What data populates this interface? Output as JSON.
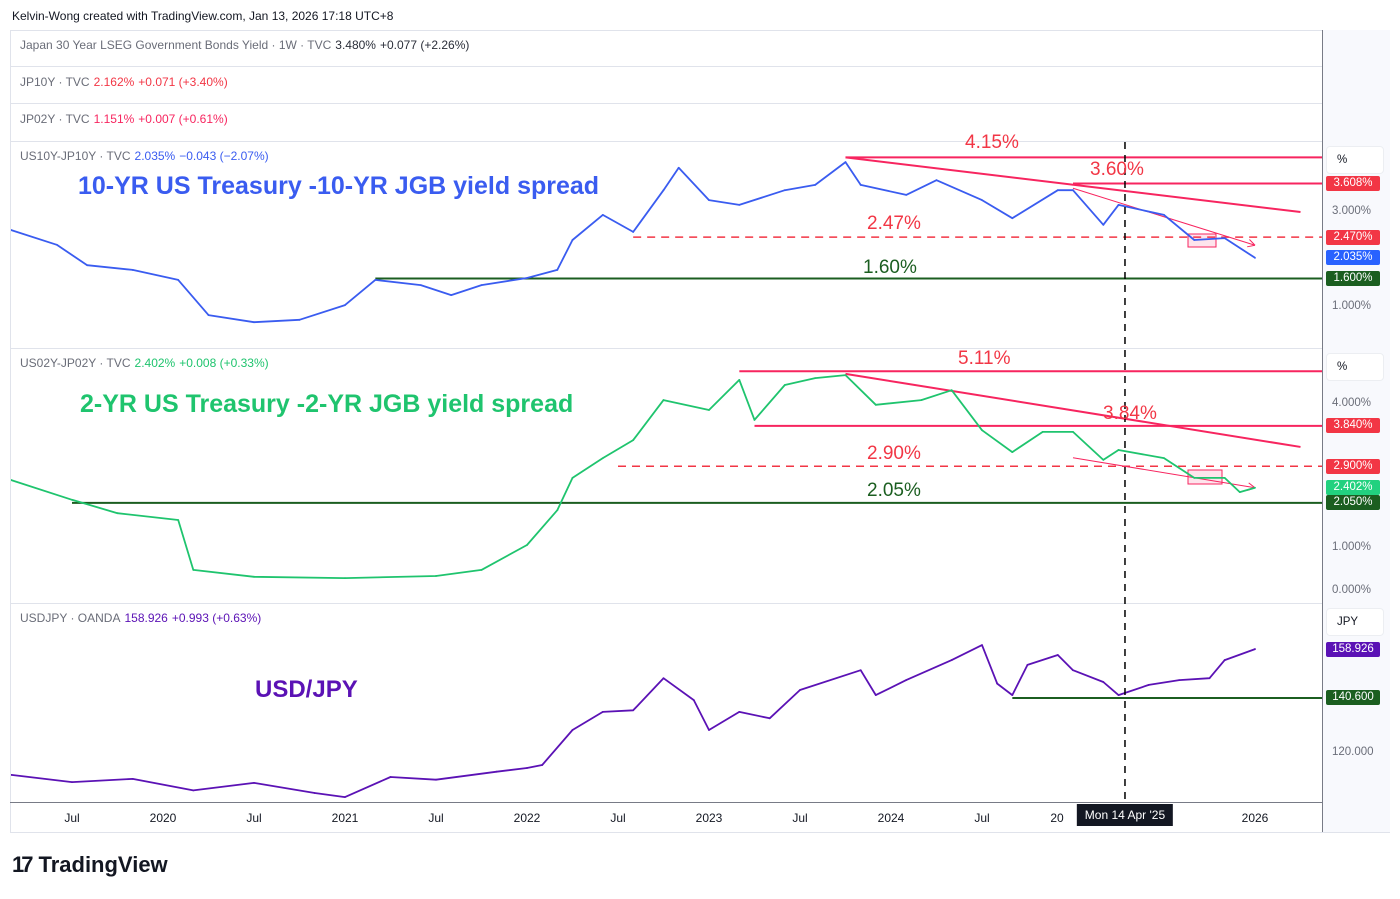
{
  "header": "Kelvin-Wong created with TradingView.com, Jan 13, 2026 17:18 UTC+8",
  "legends": [
    {
      "symbol": "Japan 30 Year LSEG Government Bonds Yield · 1W · TVC",
      "value": "3.480%",
      "change": "+0.077 (+2.26%)",
      "color": "#2a2e39"
    },
    {
      "symbol": "JP10Y · TVC",
      "value": "2.162%",
      "change": "+0.071 (+3.40%)",
      "color": "#f23645"
    },
    {
      "symbol": "JP02Y · TVC",
      "value": "1.151%",
      "change": "+0.007 (+0.61%)",
      "color": "#f7255f"
    },
    {
      "symbol": "US10Y-JP10Y · TVC",
      "value": "2.035%",
      "change": "−0.043 (−2.07%)",
      "color": "#3a5cf0"
    },
    {
      "symbol": "US02Y-JP02Y · TVC",
      "value": "2.402%",
      "change": "+0.008 (+0.33%)",
      "color": "#1fc46e"
    },
    {
      "symbol": "USDJPY · OANDA",
      "value": "158.926",
      "change": "+0.993 (+0.63%)",
      "color": "#5b12b5"
    }
  ],
  "logo": "TradingView",
  "chart_data": [
    {
      "type": "line",
      "title": "10-YR US Treasury -10-YR JGB yield spread",
      "unit": "%",
      "color": "#3a5cf0",
      "x": [
        "2019-03",
        "2019-06",
        "2019-08",
        "2019-11",
        "2020-02",
        "2020-04",
        "2020-07",
        "2020-10",
        "2021-01",
        "2021-03",
        "2021-06",
        "2021-08",
        "2021-10",
        "2022-01",
        "2022-03",
        "2022-04",
        "2022-06",
        "2022-08",
        "2022-10",
        "2022-11",
        "2023-01",
        "2023-03",
        "2023-06",
        "2023-08",
        "2023-10",
        "2023-11",
        "2024-02",
        "2024-04",
        "2024-07",
        "2024-09",
        "2024-12",
        "2025-01",
        "2025-03",
        "2025-04",
        "2025-07",
        "2025-09",
        "2025-11",
        "2026-01"
      ],
      "values": [
        2.62,
        2.31,
        1.88,
        1.78,
        1.57,
        0.83,
        0.68,
        0.73,
        1.04,
        1.57,
        1.46,
        1.25,
        1.46,
        1.61,
        1.78,
        2.41,
        2.94,
        2.58,
        3.46,
        3.93,
        3.25,
        3.15,
        3.46,
        3.57,
        4.05,
        3.57,
        3.36,
        3.67,
        3.25,
        2.87,
        3.46,
        3.46,
        2.73,
        3.15,
        2.94,
        2.41,
        2.45,
        2.035
      ],
      "ticks": [
        "3.000%",
        "1.000%"
      ],
      "price_labels": [
        {
          "text": "3.608%",
          "color": "#f23645",
          "v": 3.608
        },
        {
          "text": "2.470%",
          "color": "#f23645",
          "v": 2.47
        },
        {
          "text": "2.035%",
          "color": "#2962ff",
          "v": 2.035
        },
        {
          "text": "1.600%",
          "color": "#1b5e20",
          "v": 1.6
        }
      ],
      "levels": [
        {
          "label": "4.15%",
          "v": 4.15,
          "from": "2023-10",
          "style": "solid",
          "color": "#f7255f"
        },
        {
          "label": "3.60%",
          "v": 3.6,
          "from": "2025-01",
          "style": "solid",
          "color": "#f7255f"
        },
        {
          "label": "2.47%",
          "v": 2.47,
          "from": "2022-08",
          "style": "dashed",
          "color": "#f23645"
        },
        {
          "label": "1.60%",
          "v": 1.6,
          "from": "2021-03",
          "style": "solid",
          "color": "#1b5e20"
        }
      ],
      "trendlines": [
        {
          "from": [
            "2023-10",
            4.15
          ],
          "to": [
            "2026-04",
            3.0
          ],
          "width": 2
        },
        {
          "from": [
            "2025-01",
            3.5
          ],
          "to": [
            "2026-01",
            2.3
          ],
          "width": 1,
          "arrow": true
        }
      ]
    },
    {
      "type": "line",
      "title": "2-YR US Treasury -2-YR JGB yield spread",
      "unit": "%",
      "color": "#1fc46e",
      "x": [
        "2019-03",
        "2019-07",
        "2019-10",
        "2020-02",
        "2020-03",
        "2020-07",
        "2021-01",
        "2021-07",
        "2021-10",
        "2022-01",
        "2022-03",
        "2022-04",
        "2022-06",
        "2022-08",
        "2022-10",
        "2023-01",
        "2023-03",
        "2023-04",
        "2023-06",
        "2023-08",
        "2023-10",
        "2023-12",
        "2024-03",
        "2024-05",
        "2024-07",
        "2024-09",
        "2024-11",
        "2025-01",
        "2025-03",
        "2025-04",
        "2025-07",
        "2025-09",
        "2025-11",
        "2025-12",
        "2026-01"
      ],
      "values": [
        2.58,
        2.12,
        1.81,
        1.65,
        0.49,
        0.33,
        0.3,
        0.35,
        0.49,
        1.07,
        1.88,
        2.63,
        3.09,
        3.51,
        4.44,
        4.21,
        4.91,
        3.98,
        4.79,
        4.95,
        5.02,
        4.33,
        4.44,
        4.67,
        3.74,
        3.23,
        3.7,
        3.7,
        3.05,
        3.28,
        3.09,
        2.63,
        2.63,
        2.3,
        2.402
      ],
      "ticks": [
        "4.000%",
        "1.000%",
        "0.000%"
      ],
      "price_labels": [
        {
          "text": "3.840%",
          "color": "#f23645",
          "v": 3.84
        },
        {
          "text": "2.900%",
          "color": "#f23645",
          "v": 2.9
        },
        {
          "text": "2.402%",
          "color": "#22d17f",
          "v": 2.402
        },
        {
          "text": "2.050%",
          "color": "#1b5e20",
          "v": 2.05
        }
      ],
      "levels": [
        {
          "label": "5.11%",
          "v": 5.11,
          "from": "2023-03",
          "style": "solid",
          "color": "#f7255f"
        },
        {
          "label": "3.84%",
          "v": 3.84,
          "from": "2023-04",
          "style": "solid",
          "color": "#f7255f"
        },
        {
          "label": "2.90%",
          "v": 2.9,
          "from": "2022-07",
          "style": "dashed",
          "color": "#f23645"
        },
        {
          "label": "2.05%",
          "v": 2.05,
          "from": "2019-07",
          "style": "solid",
          "color": "#1b5e20"
        }
      ],
      "trendlines": [
        {
          "from": [
            "2023-10",
            5.05
          ],
          "to": [
            "2026-04",
            3.35
          ],
          "width": 2
        },
        {
          "from": [
            "2025-01",
            3.1
          ],
          "to": [
            "2026-01",
            2.4
          ],
          "width": 1,
          "arrow": true
        }
      ]
    },
    {
      "type": "line",
      "title": "USD/JPY",
      "unit": "JPY",
      "color": "#5b12b5",
      "x": [
        "2019-03",
        "2019-07",
        "2019-11",
        "2020-03",
        "2020-07",
        "2020-11",
        "2021-01",
        "2021-04",
        "2021-07",
        "2021-11",
        "2022-01",
        "2022-02",
        "2022-04",
        "2022-06",
        "2022-08",
        "2022-10",
        "2022-12",
        "2023-01",
        "2023-03",
        "2023-05",
        "2023-07",
        "2023-11",
        "2023-12",
        "2024-02",
        "2024-05",
        "2024-07",
        "2024-08",
        "2024-09",
        "2024-10",
        "2024-12",
        "2025-01",
        "2025-03",
        "2025-04",
        "2025-06",
        "2025-08",
        "2025-10",
        "2025-11",
        "2026-01"
      ],
      "values": [
        111.8,
        109.1,
        110.3,
        106.0,
        108.8,
        105.0,
        103.5,
        111.0,
        110.0,
        113.0,
        114.4,
        115.5,
        128.6,
        135.4,
        136.0,
        148.0,
        139.8,
        128.6,
        135.4,
        133.0,
        143.6,
        151.0,
        141.7,
        147.3,
        154.8,
        160.4,
        146.0,
        141.7,
        153.0,
        156.7,
        151.0,
        146.6,
        141.7,
        145.5,
        147.3,
        148.0,
        154.8,
        158.926
      ],
      "ticks": [
        "120.000"
      ],
      "price_labels": [
        {
          "text": "158.926",
          "color": "#5b12b5",
          "v": 158.926
        },
        {
          "text": "140.600",
          "color": "#1b5e20",
          "v": 140.6
        }
      ],
      "levels": [
        {
          "label": "",
          "v": 140.6,
          "from": "2024-09",
          "style": "solid",
          "color": "#1b5e20"
        }
      ],
      "trendlines": []
    }
  ],
  "x_axis": {
    "ticks": [
      {
        "label": "Jul",
        "d": "2019-07"
      },
      {
        "label": "2020",
        "d": "2020-01"
      },
      {
        "label": "Jul",
        "d": "2020-07"
      },
      {
        "label": "2021",
        "d": "2021-01"
      },
      {
        "label": "Jul",
        "d": "2021-07"
      },
      {
        "label": "2022",
        "d": "2022-01"
      },
      {
        "label": "Jul",
        "d": "2022-07"
      },
      {
        "label": "2023",
        "d": "2023-01"
      },
      {
        "label": "Jul",
        "d": "2023-07"
      },
      {
        "label": "2024",
        "d": "2024-01"
      },
      {
        "label": "Jul",
        "d": "2024-07"
      },
      {
        "label": "20",
        "d": "2025-01"
      },
      {
        "label": "2026",
        "d": "2026-01"
      }
    ],
    "crosshair": {
      "label": "Mon 14 Apr '25",
      "d": "2025-04-14"
    }
  }
}
